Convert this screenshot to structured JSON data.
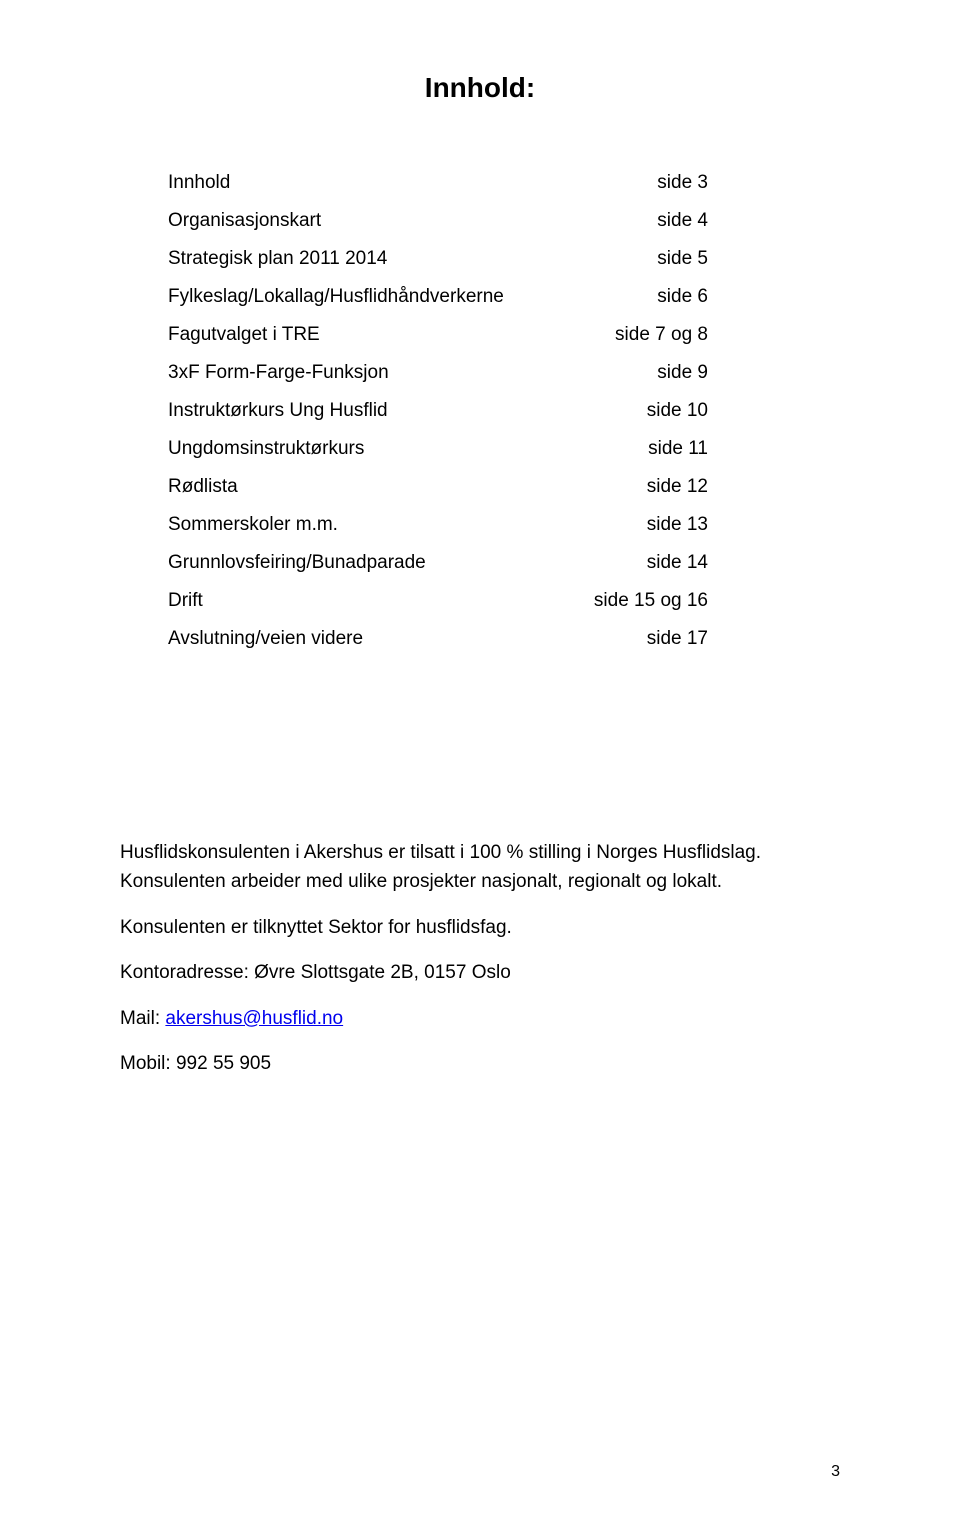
{
  "title": "Innhold:",
  "toc": [
    {
      "label": "Innhold",
      "page": "side 3"
    },
    {
      "label": "Organisasjonskart",
      "page": "side 4"
    },
    {
      "label": "Strategisk plan 2011 2014",
      "page": "side 5"
    },
    {
      "label": "Fylkeslag/Lokallag/Husflidhåndverkerne",
      "page": "side 6"
    },
    {
      "label": "Fagutvalget i TRE",
      "page": "side 7 og 8"
    },
    {
      "label": "3xF Form-Farge-Funksjon",
      "page": "side 9"
    },
    {
      "label": "Instruktørkurs Ung Husflid",
      "page": "side 10"
    },
    {
      "label": "Ungdomsinstruktørkurs",
      "page": "side 11"
    },
    {
      "label": "Rødlista",
      "page": "side 12"
    },
    {
      "label": "Sommerskoler m.m.",
      "page": "side 13"
    },
    {
      "label": "Grunnlovsfeiring/Bunadparade",
      "page": "side 14"
    },
    {
      "label": "Drift",
      "page": "side 15 og 16"
    },
    {
      "label": "Avslutning/veien videre",
      "page": "side 17"
    }
  ],
  "footer": {
    "line1": "Husflidskonsulenten i Akershus er tilsatt i 100 % stilling i Norges Husflidslag. Konsulenten arbeider med ulike prosjekter nasjonalt, regionalt og lokalt.",
    "line2": "Konsulenten er tilknyttet Sektor for husflidsfag.",
    "line3": "Kontoradresse: Øvre Slottsgate 2B, 0157 Oslo",
    "mail_prefix": "Mail: ",
    "mail_link": "akershus@husflid.no",
    "mobile": "Mobil: 992 55 905"
  },
  "page_number": "3",
  "colors": {
    "text": "#000000",
    "link": "#0000ee",
    "background": "#ffffff"
  },
  "typography": {
    "title_fontsize": 28,
    "body_fontsize": 19,
    "pagenum_fontsize": 16,
    "font_family": "Arial"
  }
}
